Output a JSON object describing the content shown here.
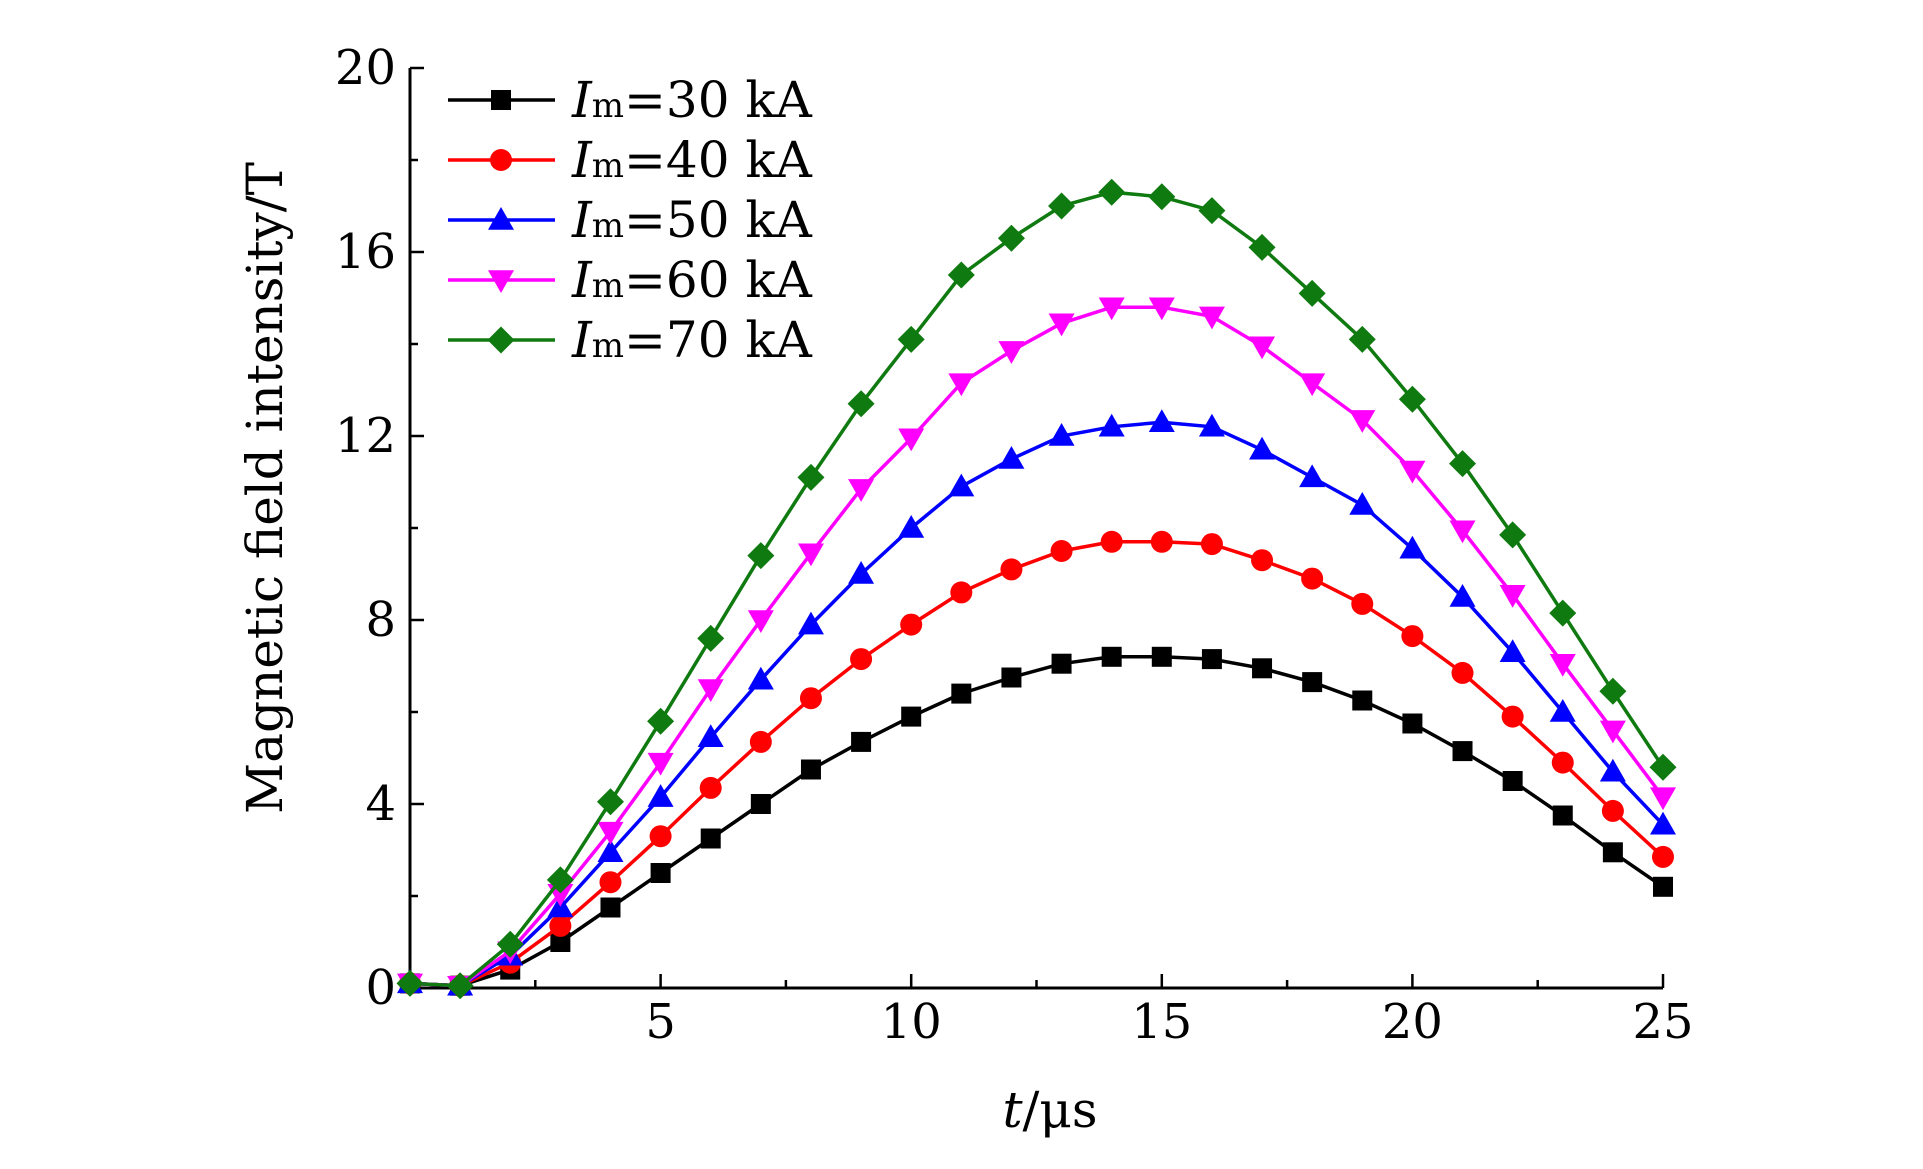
{
  "chart_data": {
    "type": "line",
    "xlabel": {
      "var": "t",
      "unit": "/μs"
    },
    "ylabel": "Magnetic field intensity/T",
    "xlim": [
      0,
      25
    ],
    "ylim": [
      0,
      20
    ],
    "x_ticks": [
      5,
      10,
      15,
      20,
      25
    ],
    "y_ticks": [
      0,
      4,
      8,
      12,
      16,
      20
    ],
    "grid": false,
    "legend_position": "top-left",
    "x": [
      0,
      1,
      2,
      3,
      4,
      5,
      6,
      7,
      8,
      9,
      10,
      11,
      12,
      13,
      14,
      15,
      16,
      17,
      18,
      19,
      20,
      21,
      22,
      23,
      24,
      25
    ],
    "series": [
      {
        "label_var": "I",
        "label_sub": "m",
        "label_value": "=30 kA",
        "color": "#000000",
        "marker": "square",
        "values": [
          0.1,
          0.05,
          0.4,
          1.0,
          1.75,
          2.5,
          3.25,
          4.0,
          4.75,
          5.35,
          5.9,
          6.4,
          6.75,
          7.05,
          7.2,
          7.2,
          7.15,
          6.95,
          6.65,
          6.25,
          5.75,
          5.15,
          4.5,
          3.75,
          2.95,
          2.2
        ]
      },
      {
        "label_var": "I",
        "label_sub": "m",
        "label_value": "=40 kA",
        "color": "#ff0000",
        "marker": "circle",
        "values": [
          0.1,
          0.05,
          0.55,
          1.35,
          2.3,
          3.3,
          4.35,
          5.35,
          6.3,
          7.15,
          7.9,
          8.6,
          9.1,
          9.5,
          9.7,
          9.7,
          9.65,
          9.3,
          8.9,
          8.35,
          7.65,
          6.85,
          5.9,
          4.9,
          3.85,
          2.85
        ]
      },
      {
        "label_var": "I",
        "label_sub": "m",
        "label_value": "=50 kA",
        "color": "#0000ff",
        "marker": "triangle-up",
        "values": [
          0.1,
          0.05,
          0.7,
          1.75,
          2.95,
          4.15,
          5.45,
          6.7,
          7.9,
          9.0,
          10.0,
          10.9,
          11.5,
          12.0,
          12.2,
          12.3,
          12.2,
          11.7,
          11.1,
          10.5,
          9.55,
          8.5,
          7.3,
          6.0,
          4.7,
          3.55
        ]
      },
      {
        "label_var": "I",
        "label_sub": "m",
        "label_value": "=60 kA",
        "color": "#ff00ff",
        "marker": "triangle-down",
        "values": [
          0.1,
          0.05,
          0.8,
          2.05,
          3.4,
          4.9,
          6.5,
          8.0,
          9.45,
          10.85,
          11.95,
          13.15,
          13.85,
          14.45,
          14.8,
          14.8,
          14.6,
          13.95,
          13.15,
          12.35,
          11.25,
          9.95,
          8.55,
          7.05,
          5.6,
          4.15
        ]
      },
      {
        "label_var": "I",
        "label_sub": "m",
        "label_value": "=70 kA",
        "color": "#0f7a0f",
        "marker": "diamond",
        "values": [
          0.1,
          0.05,
          0.95,
          2.35,
          4.05,
          5.8,
          7.6,
          9.4,
          11.1,
          12.7,
          14.1,
          15.5,
          16.3,
          17.0,
          17.3,
          17.2,
          16.9,
          16.1,
          15.1,
          14.1,
          12.8,
          11.4,
          9.85,
          8.15,
          6.45,
          4.8
        ]
      }
    ]
  }
}
